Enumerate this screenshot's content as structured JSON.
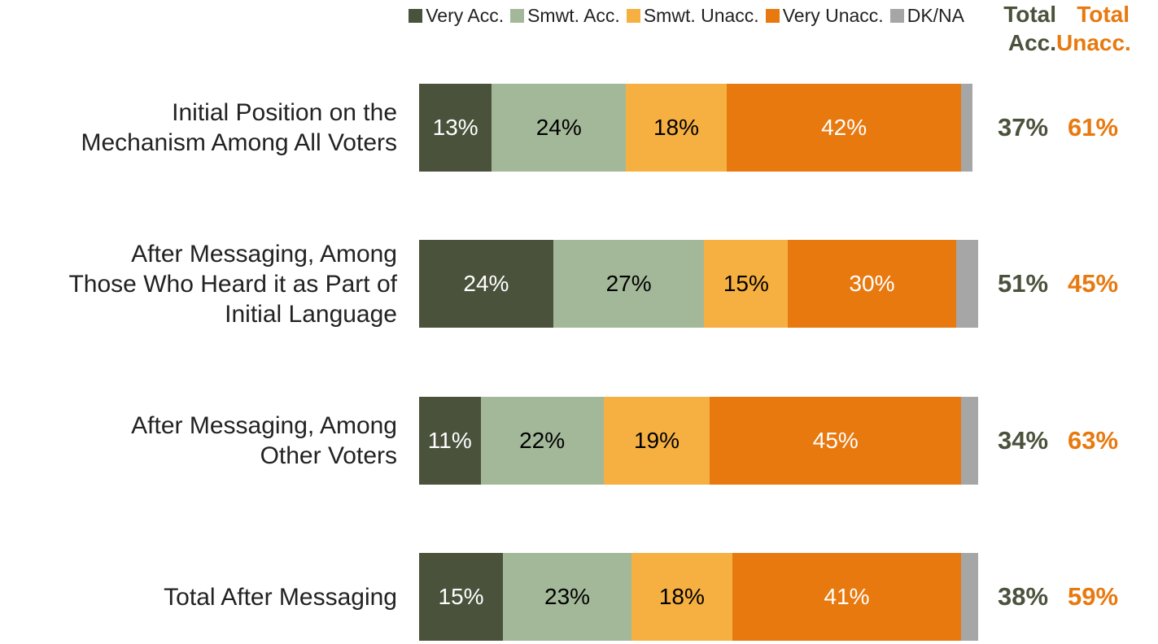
{
  "chart_data": {
    "type": "stacked-bar-horizontal",
    "categories": [
      "Initial Position on the\nMechanism Among All Voters",
      "After Messaging, Among\nThose Who Heard it as Part of\nInitial Language",
      "After Messaging, Among\nOther Voters",
      "Total After Messaging"
    ],
    "xlim": [
      0,
      100
    ],
    "series": [
      {
        "name": "Very Acc.",
        "color": "#4a523c",
        "label_color": "#ffffff",
        "values": [
          13,
          24,
          11,
          15
        ],
        "value_labels": [
          "13%",
          "24%",
          "11%",
          "15%"
        ]
      },
      {
        "name": "Smwt. Acc.",
        "color": "#a3b899",
        "label_color": "#000000",
        "values": [
          24,
          27,
          22,
          23
        ],
        "value_labels": [
          "24%",
          "27%",
          "22%",
          "23%"
        ]
      },
      {
        "name": "Smwt. Unacc.",
        "color": "#f6b042",
        "label_color": "#000000",
        "values": [
          18,
          15,
          19,
          18
        ],
        "value_labels": [
          "18%",
          "15%",
          "19%",
          "18%"
        ]
      },
      {
        "name": "Very Unacc.",
        "color": "#e8790f",
        "label_color": "#ffffff",
        "values": [
          42,
          30,
          45,
          41
        ],
        "value_labels": [
          "42%",
          "30%",
          "45%",
          "41%"
        ]
      },
      {
        "name": "DK/NA",
        "color": "#a6a6a6",
        "values": [
          2,
          4,
          3,
          3
        ]
      }
    ],
    "totals": [
      {
        "name": "Total\nAcc.",
        "color": "#4a523c",
        "values": [
          37,
          51,
          34,
          38
        ],
        "value_labels": [
          "37%",
          "51%",
          "34%",
          "38%"
        ]
      },
      {
        "name": "Total\nUnacc.",
        "color": "#e8790f",
        "values": [
          61,
          45,
          63,
          59
        ],
        "value_labels": [
          "61%",
          "45%",
          "63%",
          "59%"
        ]
      }
    ]
  }
}
